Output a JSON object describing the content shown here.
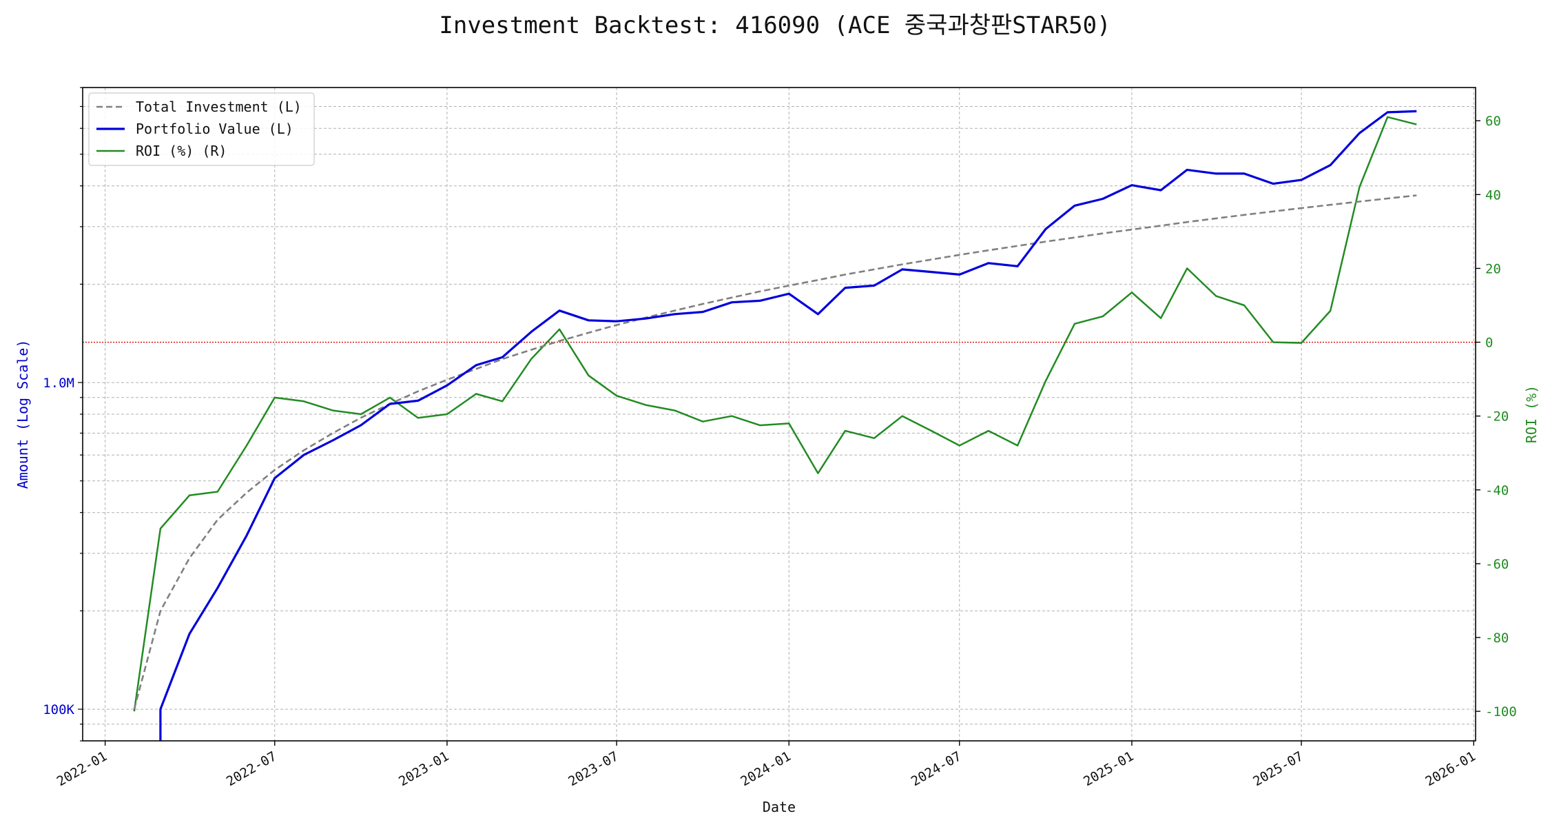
{
  "chart_data": {
    "type": "line",
    "title": "Investment Backtest: 416090 (ACE 중국과창판STAR50)",
    "xlabel": "Date",
    "ylabel_left": "Amount (Log Scale)",
    "ylabel_right": "ROI (%)",
    "left_axis": {
      "scale": "log",
      "range": [
        80000,
        8000000
      ],
      "ticks": [
        100000,
        1000000
      ],
      "tick_labels": [
        "100K",
        "1.0M"
      ],
      "color": "#0000cc"
    },
    "right_axis": {
      "scale": "linear",
      "range": [
        -108,
        69
      ],
      "ticks": [
        -100,
        -80,
        -60,
        -40,
        -20,
        0,
        20,
        40,
        60
      ],
      "tick_labels": [
        "-100",
        "-80",
        "-60",
        "-40",
        "-20",
        "0",
        "20",
        "40",
        "60"
      ],
      "color": "#228b22"
    },
    "x_axis": {
      "range": [
        "2021-12-08",
        "2026-01-03"
      ],
      "ticks": [
        "2022-01-01",
        "2022-07-01",
        "2023-01-01",
        "2023-07-01",
        "2024-01-01",
        "2024-07-01",
        "2025-01-01",
        "2025-07-01",
        "2026-01-01"
      ],
      "tick_labels": [
        "2022-01",
        "2022-07",
        "2023-01",
        "2023-07",
        "2024-01",
        "2024-07",
        "2025-01",
        "2025-07",
        "2026-01"
      ]
    },
    "grid": true,
    "legend_position": "top-left",
    "zero_line": {
      "y": 0,
      "axis": "right",
      "color": "#dd0000",
      "style": "dotted"
    },
    "x": [
      "2022-02-01",
      "2022-03-01",
      "2022-04-01",
      "2022-05-01",
      "2022-06-01",
      "2022-07-01",
      "2022-08-01",
      "2022-09-01",
      "2022-10-01",
      "2022-11-01",
      "2022-12-01",
      "2023-01-01",
      "2023-02-01",
      "2023-03-01",
      "2023-04-01",
      "2023-05-01",
      "2023-06-01",
      "2023-07-01",
      "2023-08-01",
      "2023-09-01",
      "2023-10-01",
      "2023-11-01",
      "2023-12-01",
      "2024-01-01",
      "2024-02-01",
      "2024-03-01",
      "2024-04-01",
      "2024-05-01",
      "2024-06-01",
      "2024-07-01",
      "2024-08-01",
      "2024-09-01",
      "2024-10-01",
      "2024-11-01",
      "2024-12-01",
      "2025-01-01",
      "2025-02-01",
      "2025-03-01",
      "2025-04-01",
      "2025-05-01",
      "2025-06-01",
      "2025-07-01",
      "2025-08-01",
      "2025-09-01",
      "2025-10-01",
      "2025-11-01"
    ],
    "series": [
      {
        "name": "Total Investment (L)",
        "axis": "left",
        "color": "#808080",
        "style": "dashed",
        "values": [
          100000,
          200000,
          290000,
          380000,
          460000,
          540000,
          620000,
          700000,
          780000,
          860000,
          940000,
          1020000,
          1100000,
          1180000,
          1260000,
          1340000,
          1420000,
          1500000,
          1580000,
          1660000,
          1740000,
          1820000,
          1900000,
          1980000,
          2060000,
          2140000,
          2220000,
          2300000,
          2380000,
          2460000,
          2540000,
          2620000,
          2700000,
          2780000,
          2860000,
          2940000,
          3020000,
          3100000,
          3180000,
          3260000,
          3340000,
          3420000,
          3500000,
          3580000,
          3660000,
          3740000
        ]
      },
      {
        "name": "Portfolio Value (L)",
        "axis": "left",
        "color": "#0000dd",
        "style": "solid",
        "values": [
          null,
          100000,
          170000,
          235000,
          340000,
          510000,
          600000,
          665000,
          740000,
          860000,
          880000,
          980000,
          1130000,
          1195000,
          1430000,
          1660000,
          1550000,
          1540000,
          1570000,
          1620000,
          1645000,
          1760000,
          1780000,
          1870000,
          1620000,
          1950000,
          1980000,
          2220000,
          2180000,
          2140000,
          2320000,
          2270000,
          2950000,
          3480000,
          3650000,
          4020000,
          3880000,
          4480000,
          4360000,
          4360000,
          4060000,
          4170000,
          4630000,
          5800000,
          6720000,
          6770000
        ]
      },
      {
        "name": "ROI (%) (R)",
        "axis": "right",
        "color": "#228b22",
        "style": "solid",
        "values": [
          -100,
          -50.5,
          -41.5,
          -40.5,
          -28,
          -15,
          -16,
          -18.5,
          -19.5,
          -15,
          -20.5,
          -19.5,
          -14,
          -16,
          -4.5,
          3.5,
          -9,
          -14.5,
          -17,
          -18.5,
          -21.5,
          -20,
          -22.5,
          -22,
          -35.5,
          -24,
          -26,
          -20,
          -24,
          -28,
          -24,
          -28,
          -10.5,
          5,
          7,
          13.5,
          6.5,
          20,
          12.5,
          10,
          0,
          -0.2,
          8.5,
          42,
          61,
          59
        ]
      }
    ]
  }
}
